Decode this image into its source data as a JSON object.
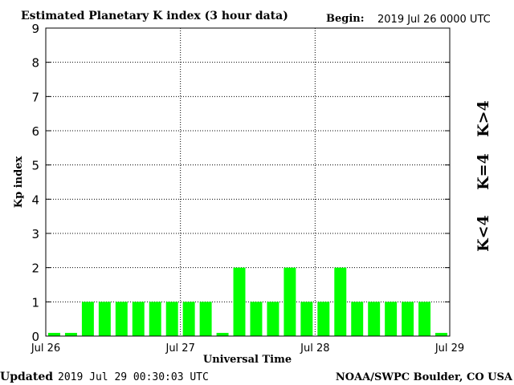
{
  "header": {
    "title": "Estimated Planetary K index (3 hour data)",
    "begin_label": "Begin:",
    "begin_value": "2019 Jul 26 0000 UTC"
  },
  "footer": {
    "updated_label": "Updated",
    "updated_value": "2019 Jul 29 00:30:03 UTC",
    "source": "NOAA/SWPC Boulder, CO USA"
  },
  "legend": {
    "low": "K<4",
    "mid": "K=4",
    "high": "K>4",
    "colors": {
      "low": "#00ff00",
      "mid": "#ffd700",
      "high": "#ff2a00"
    }
  },
  "chart_data": {
    "type": "bar",
    "title": "Estimated Planetary K index (3 hour data)",
    "xlabel": "Universal Time",
    "ylabel": "Kp index",
    "ylim": [
      0,
      9
    ],
    "yticks": [
      0,
      1,
      2,
      3,
      4,
      5,
      6,
      7,
      8,
      9
    ],
    "xticks": [
      "Jul 26",
      "Jul 27",
      "Jul 28",
      "Jul 29"
    ],
    "grid": true,
    "bar_color": "#00ff00",
    "values": [
      0,
      0,
      1,
      1,
      1,
      1,
      1,
      1,
      1,
      1,
      0,
      2,
      1,
      1,
      2,
      1,
      1,
      2,
      1,
      1,
      1,
      1,
      1,
      0
    ]
  }
}
